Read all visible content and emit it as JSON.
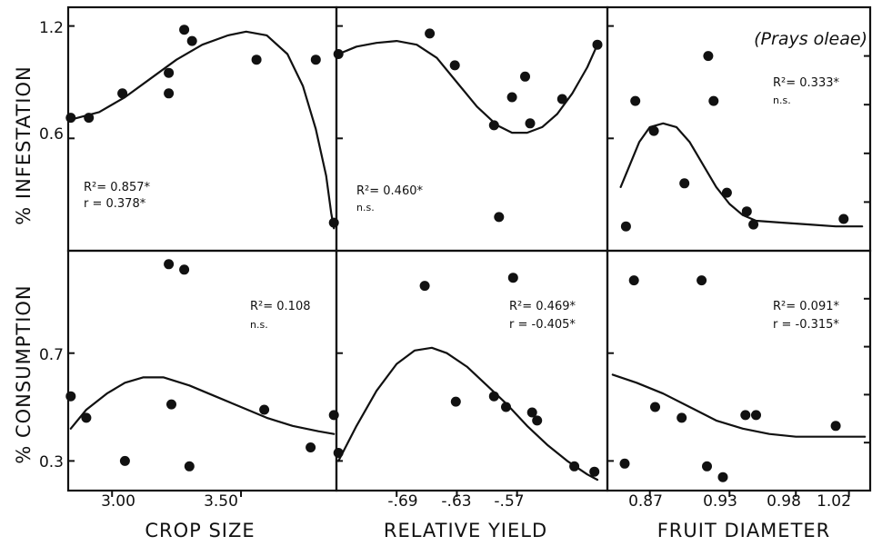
{
  "figure": {
    "species_label": "(Prays oleae)",
    "row_labels": [
      "% INFESTATION",
      "% CONSUMPTION"
    ],
    "col_labels": [
      "CROP SIZE",
      "RELATIVE YIELD",
      "FRUIT DIAMETER"
    ],
    "row_yticks": [
      {
        "values": [
          0.6,
          1.2
        ],
        "labels": [
          "0.6",
          "1.2"
        ]
      },
      {
        "values": [
          0.3,
          0.7
        ],
        "labels": [
          "0.3",
          "0.7"
        ]
      }
    ],
    "col_xticks": [
      {
        "values": [
          3.0,
          3.5
        ],
        "labels": [
          "3.00",
          "3.50"
        ]
      },
      {
        "values": [
          -0.69,
          -0.63,
          -0.57
        ],
        "labels": [
          "-.69",
          "-.63",
          "-.57"
        ]
      },
      {
        "values": [
          0.87,
          0.93,
          0.98,
          1.02
        ],
        "labels": [
          "0.87",
          "0.93",
          "0.98",
          "1.02"
        ]
      }
    ]
  },
  "chart_data": [
    {
      "type": "scatter",
      "id": "infestation-crop-size",
      "xlim": [
        2.83,
        3.87
      ],
      "ylim": [
        0.0,
        1.3
      ],
      "ticks_x": [
        3.0,
        3.5
      ],
      "ticks_y": [
        0.6,
        1.2
      ],
      "points": [
        [
          2.84,
          0.71
        ],
        [
          2.91,
          0.71
        ],
        [
          3.04,
          0.84
        ],
        [
          3.22,
          0.95
        ],
        [
          3.22,
          0.84
        ],
        [
          3.28,
          1.18
        ],
        [
          3.31,
          1.12
        ],
        [
          3.56,
          1.02
        ],
        [
          3.79,
          1.02
        ],
        [
          3.86,
          0.15
        ]
      ],
      "curve": [
        [
          2.84,
          0.7
        ],
        [
          2.95,
          0.74
        ],
        [
          3.05,
          0.82
        ],
        [
          3.15,
          0.92
        ],
        [
          3.25,
          1.02
        ],
        [
          3.35,
          1.1
        ],
        [
          3.45,
          1.15
        ],
        [
          3.52,
          1.17
        ],
        [
          3.6,
          1.15
        ],
        [
          3.68,
          1.05
        ],
        [
          3.74,
          0.88
        ],
        [
          3.79,
          0.65
        ],
        [
          3.83,
          0.4
        ],
        [
          3.85,
          0.2
        ],
        [
          3.86,
          0.12
        ]
      ],
      "annotations": [
        "R²= 0.857*",
        "r = 0.378*"
      ]
    },
    {
      "type": "scatter",
      "id": "infestation-relative-yield",
      "xlim": [
        -0.75,
        -0.48
      ],
      "ylim": [
        0.0,
        1.3
      ],
      "ticks_x": [
        -0.69,
        -0.63,
        -0.57
      ],
      "ticks_y": [
        0.6,
        1.2
      ],
      "points": [
        [
          -0.748,
          1.05
        ],
        [
          -0.657,
          1.16
        ],
        [
          -0.632,
          0.99
        ],
        [
          -0.593,
          0.67
        ],
        [
          -0.588,
          0.18
        ],
        [
          -0.575,
          0.82
        ],
        [
          -0.562,
          0.93
        ],
        [
          -0.557,
          0.68
        ],
        [
          -0.525,
          0.81
        ],
        [
          -0.49,
          1.1
        ]
      ],
      "curve": [
        [
          -0.748,
          1.05
        ],
        [
          -0.73,
          1.09
        ],
        [
          -0.71,
          1.11
        ],
        [
          -0.69,
          1.12
        ],
        [
          -0.67,
          1.1
        ],
        [
          -0.65,
          1.03
        ],
        [
          -0.63,
          0.9
        ],
        [
          -0.61,
          0.77
        ],
        [
          -0.59,
          0.67
        ],
        [
          -0.575,
          0.63
        ],
        [
          -0.56,
          0.63
        ],
        [
          -0.545,
          0.66
        ],
        [
          -0.53,
          0.73
        ],
        [
          -0.515,
          0.84
        ],
        [
          -0.5,
          0.98
        ],
        [
          -0.49,
          1.1
        ]
      ],
      "annotations": [
        "R²= 0.460*",
        "n.s."
      ]
    },
    {
      "type": "scatter",
      "id": "infestation-fruit-diameter",
      "xlim": [
        0.838,
        1.036
      ],
      "ylim": [
        0.0,
        1.3
      ],
      "ticks_x": [
        0.87,
        0.93,
        0.98,
        1.02
      ],
      "ticks_y": [
        0.6,
        1.2
      ],
      "points": [
        [
          0.852,
          0.13
        ],
        [
          0.859,
          0.8
        ],
        [
          0.873,
          0.64
        ],
        [
          0.896,
          0.36
        ],
        [
          0.914,
          1.04
        ],
        [
          0.918,
          0.8
        ],
        [
          0.928,
          0.31
        ],
        [
          0.943,
          0.21
        ],
        [
          0.948,
          0.14
        ],
        [
          1.016,
          0.17
        ]
      ],
      "curve": [
        [
          0.848,
          0.34
        ],
        [
          0.855,
          0.46
        ],
        [
          0.862,
          0.58
        ],
        [
          0.87,
          0.66
        ],
        [
          0.88,
          0.68
        ],
        [
          0.89,
          0.66
        ],
        [
          0.9,
          0.58
        ],
        [
          0.91,
          0.46
        ],
        [
          0.92,
          0.34
        ],
        [
          0.93,
          0.25
        ],
        [
          0.94,
          0.19
        ],
        [
          0.95,
          0.16
        ],
        [
          0.97,
          0.15
        ],
        [
          0.99,
          0.14
        ],
        [
          1.01,
          0.13
        ],
        [
          1.03,
          0.13
        ]
      ],
      "annotations": [
        "R²= 0.333*",
        "n.s."
      ]
    },
    {
      "type": "scatter",
      "id": "consumption-crop-size",
      "xlim": [
        2.83,
        3.87
      ],
      "ylim": [
        0.19,
        1.08
      ],
      "ticks_x": [
        3.0,
        3.5
      ],
      "ticks_y": [
        0.3,
        0.7
      ],
      "points": [
        [
          2.84,
          0.54
        ],
        [
          2.9,
          0.46
        ],
        [
          3.05,
          0.3
        ],
        [
          3.22,
          1.03
        ],
        [
          3.28,
          1.01
        ],
        [
          3.23,
          0.51
        ],
        [
          3.3,
          0.28
        ],
        [
          3.59,
          0.49
        ],
        [
          3.77,
          0.35
        ],
        [
          3.86,
          0.47
        ]
      ],
      "curve": [
        [
          2.84,
          0.42
        ],
        [
          2.9,
          0.49
        ],
        [
          2.98,
          0.55
        ],
        [
          3.05,
          0.59
        ],
        [
          3.12,
          0.61
        ],
        [
          3.2,
          0.61
        ],
        [
          3.3,
          0.58
        ],
        [
          3.4,
          0.54
        ],
        [
          3.5,
          0.5
        ],
        [
          3.6,
          0.46
        ],
        [
          3.7,
          0.43
        ],
        [
          3.8,
          0.41
        ],
        [
          3.86,
          0.4
        ]
      ],
      "annotations": [
        "R²= 0.108",
        "n.s."
      ]
    },
    {
      "type": "scatter",
      "id": "consumption-relative-yield",
      "xlim": [
        -0.75,
        -0.48
      ],
      "ylim": [
        0.19,
        1.08
      ],
      "ticks_x": [
        -0.69,
        -0.63,
        -0.57
      ],
      "ticks_y": [
        0.3,
        0.7
      ],
      "points": [
        [
          -0.748,
          0.33
        ],
        [
          -0.662,
          0.95
        ],
        [
          -0.631,
          0.52
        ],
        [
          -0.593,
          0.54
        ],
        [
          -0.581,
          0.5
        ],
        [
          -0.574,
          0.98
        ],
        [
          -0.555,
          0.48
        ],
        [
          -0.55,
          0.45
        ],
        [
          -0.513,
          0.28
        ],
        [
          -0.493,
          0.26
        ]
      ],
      "curve": [
        [
          -0.748,
          0.3
        ],
        [
          -0.73,
          0.43
        ],
        [
          -0.71,
          0.56
        ],
        [
          -0.69,
          0.66
        ],
        [
          -0.672,
          0.71
        ],
        [
          -0.655,
          0.72
        ],
        [
          -0.64,
          0.7
        ],
        [
          -0.62,
          0.65
        ],
        [
          -0.6,
          0.58
        ],
        [
          -0.58,
          0.51
        ],
        [
          -0.56,
          0.43
        ],
        [
          -0.54,
          0.36
        ],
        [
          -0.52,
          0.3
        ],
        [
          -0.5,
          0.25
        ],
        [
          -0.49,
          0.23
        ]
      ],
      "annotations": [
        "R²= 0.469*",
        "r = -0.405*"
      ]
    },
    {
      "type": "scatter",
      "id": "consumption-fruit-diameter",
      "xlim": [
        0.838,
        1.036
      ],
      "ylim": [
        0.19,
        1.08
      ],
      "ticks_x": [
        0.87,
        0.93,
        0.98,
        1.02
      ],
      "ticks_y": [
        0.3,
        0.7
      ],
      "points": [
        [
          0.851,
          0.29
        ],
        [
          0.858,
          0.97
        ],
        [
          0.874,
          0.5
        ],
        [
          0.894,
          0.46
        ],
        [
          0.909,
          0.97
        ],
        [
          0.913,
          0.28
        ],
        [
          0.925,
          0.24
        ],
        [
          0.942,
          0.47
        ],
        [
          0.95,
          0.47
        ],
        [
          1.01,
          0.43
        ]
      ],
      "curve": [
        [
          0.842,
          0.62
        ],
        [
          0.86,
          0.59
        ],
        [
          0.88,
          0.55
        ],
        [
          0.9,
          0.5
        ],
        [
          0.92,
          0.45
        ],
        [
          0.94,
          0.42
        ],
        [
          0.96,
          0.4
        ],
        [
          0.98,
          0.39
        ],
        [
          1.0,
          0.39
        ],
        [
          1.02,
          0.39
        ],
        [
          1.032,
          0.39
        ]
      ],
      "annotations": [
        "R²= 0.091*",
        "r = -0.315*"
      ]
    }
  ]
}
